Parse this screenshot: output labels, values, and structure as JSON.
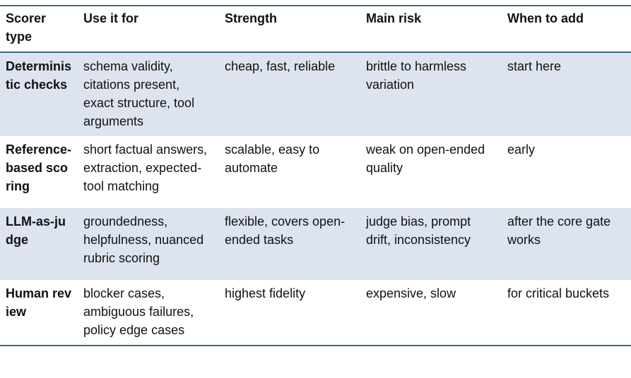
{
  "table": {
    "header": [
      "Scorer type",
      "Use it for",
      "Strength",
      "Main risk",
      "When to add"
    ],
    "rows": [
      [
        "Deterministic checks",
        "schema validity, citations present, exact structure, tool arguments",
        "cheap, fast, reliable",
        "brittle to harmless variation",
        "start here"
      ],
      [
        "Reference-based scoring",
        "short factual answers, extraction, expected-tool matching",
        "scalable, easy to automate",
        "weak on open-ended quality",
        "early"
      ],
      [
        "LLM-as-judge",
        "groundedness, helpfulness, nuanced rubric scoring",
        "flexible, covers open-ended tasks",
        "judge bias, prompt drift, inconsistency",
        "after the core gate works"
      ],
      [
        "Human review",
        "blocker cases, ambiguous failures, policy edge cases",
        "highest fidelity",
        "expensive, slow",
        "for critical buckets"
      ]
    ]
  }
}
